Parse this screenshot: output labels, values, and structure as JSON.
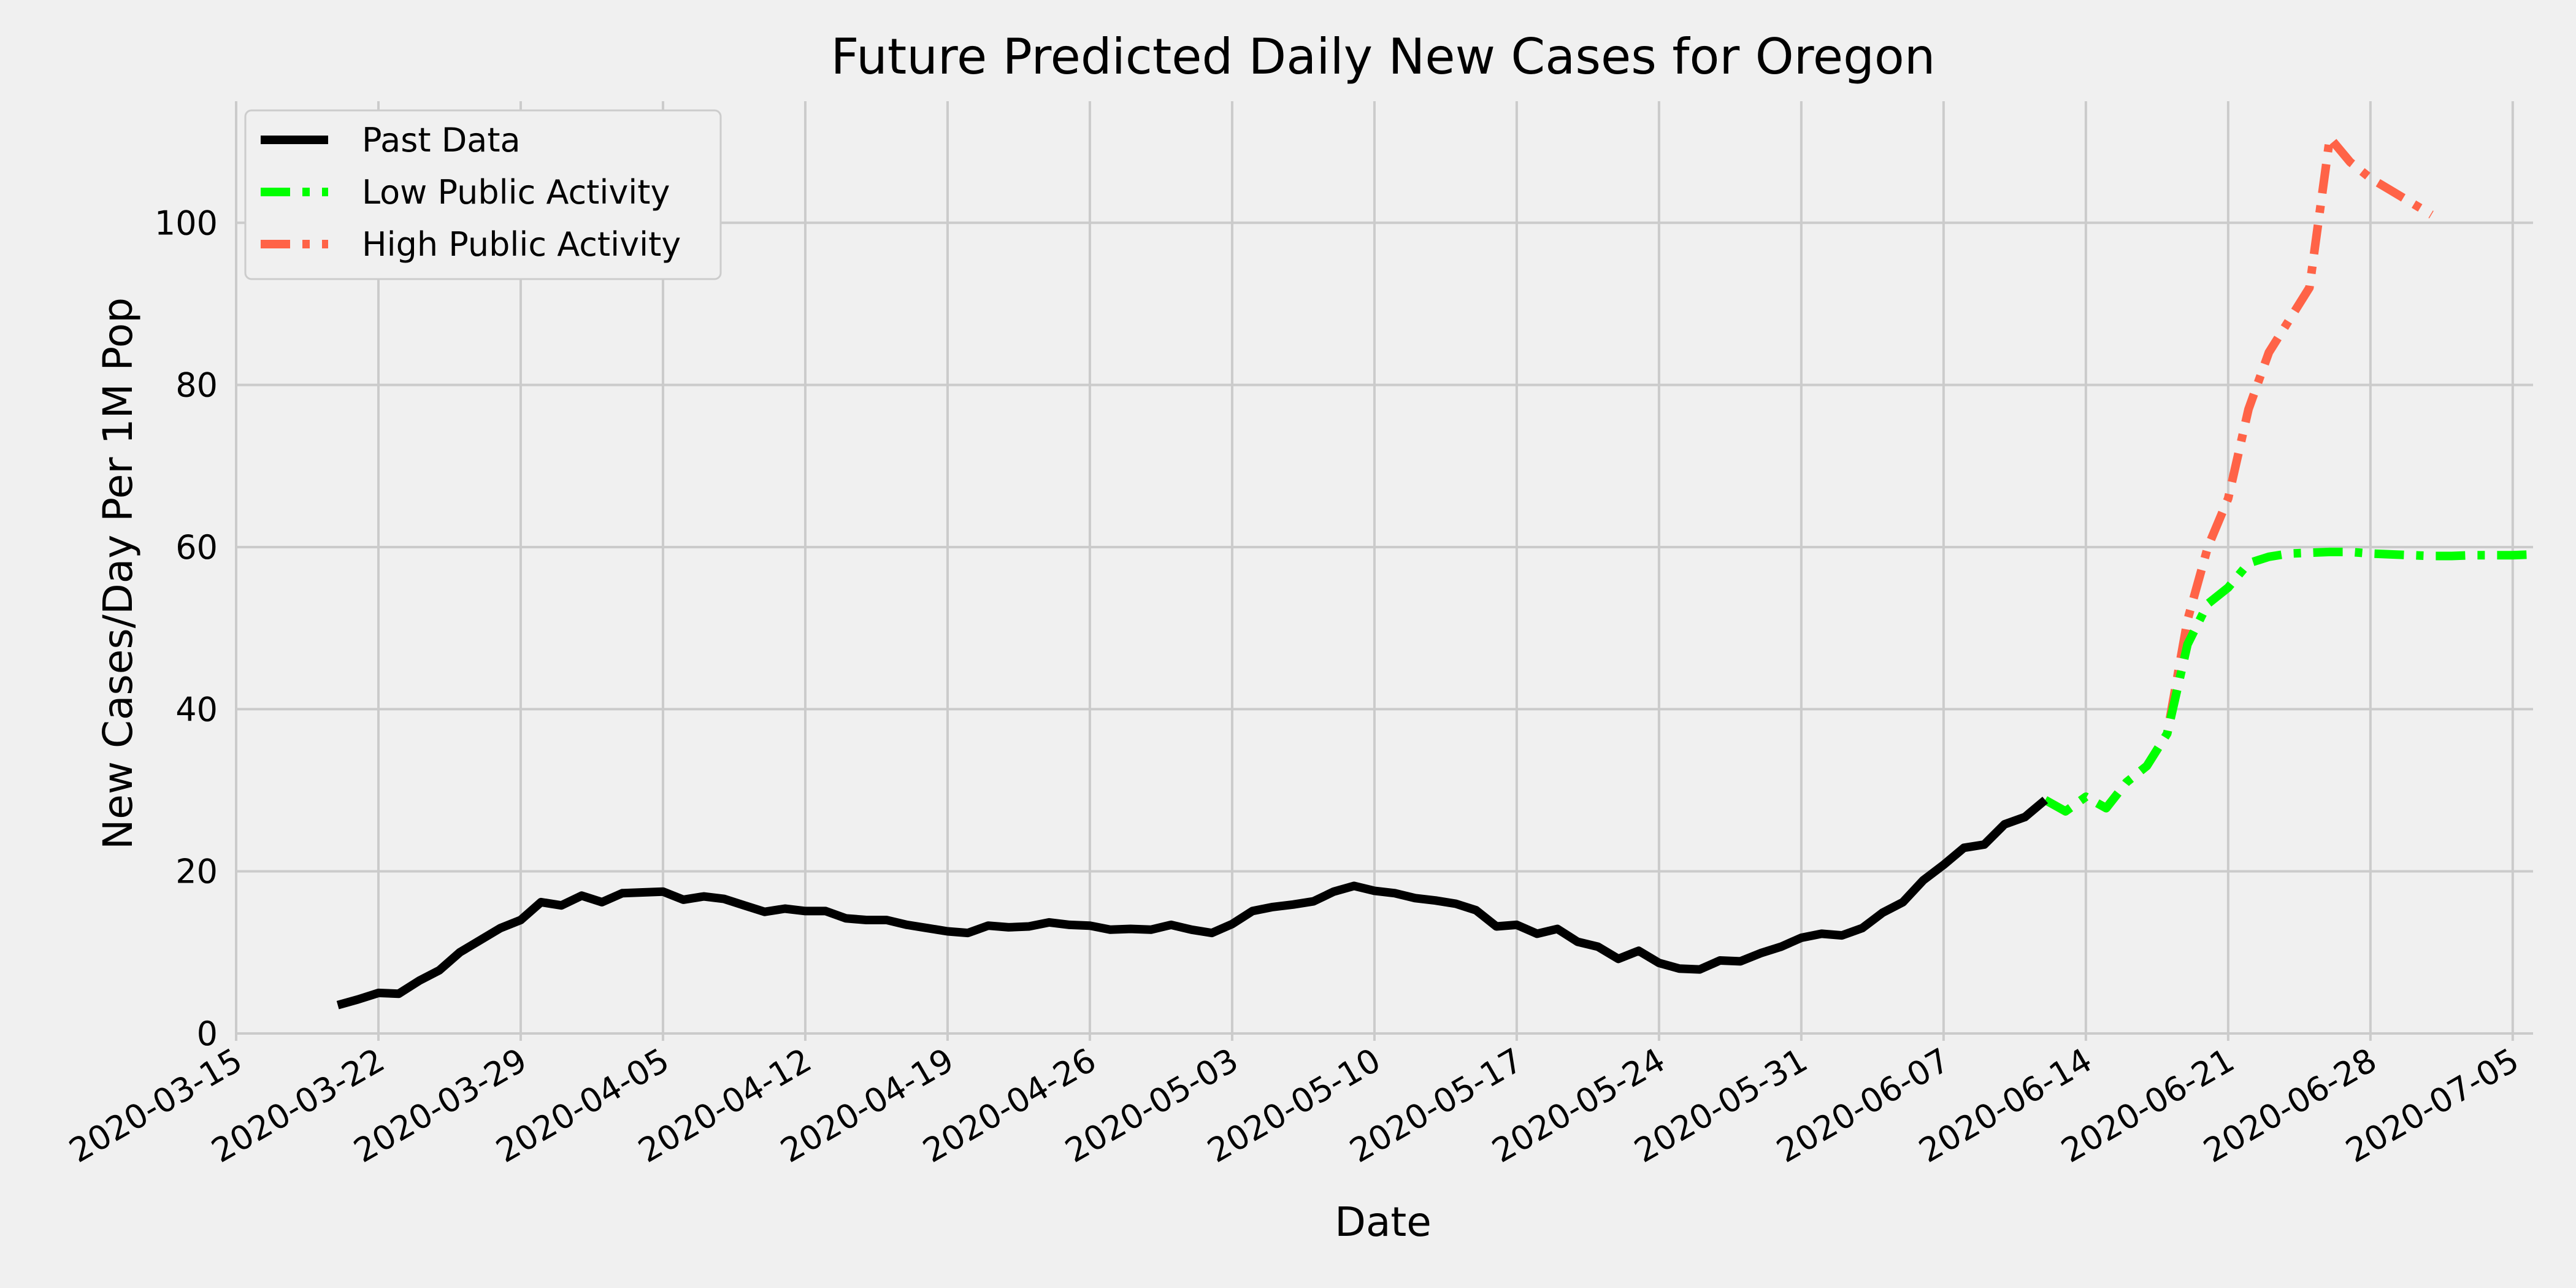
{
  "chart_data": {
    "type": "line",
    "title": "Future Predicted Daily New Cases for Oregon",
    "xlabel": "Date",
    "ylabel": "New Cases/Day Per 1M Pop",
    "xlim": [
      "2020-03-15",
      "2020-07-06"
    ],
    "ylim": [
      0,
      115
    ],
    "grid": true,
    "legend_position": "top-left",
    "x_ticks": [
      "2020-03-15",
      "2020-03-22",
      "2020-03-29",
      "2020-04-05",
      "2020-04-12",
      "2020-04-19",
      "2020-04-26",
      "2020-05-03",
      "2020-05-10",
      "2020-05-17",
      "2020-05-24",
      "2020-05-31",
      "2020-06-07",
      "2020-06-14",
      "2020-06-21",
      "2020-06-28",
      "2020-07-05"
    ],
    "y_ticks": [
      0,
      20,
      40,
      60,
      80,
      100
    ],
    "series": [
      {
        "name": "Past Data",
        "color": "#000000",
        "style": "solid",
        "start_date": "2020-03-20",
        "values": [
          3.5,
          4.2,
          5.0,
          4.9,
          6.5,
          7.8,
          10.0,
          11.5,
          13.0,
          14.0,
          16.2,
          15.8,
          17.0,
          16.2,
          17.3,
          17.4,
          17.5,
          16.5,
          16.9,
          16.6,
          15.8,
          15.0,
          15.4,
          15.1,
          15.1,
          14.2,
          14.0,
          14.0,
          13.4,
          13.0,
          12.6,
          12.4,
          13.3,
          13.1,
          13.2,
          13.7,
          13.4,
          13.3,
          12.8,
          12.9,
          12.8,
          13.4,
          12.8,
          12.4,
          13.5,
          15.1,
          15.6,
          15.9,
          16.3,
          17.5,
          18.2,
          17.6,
          17.3,
          16.7,
          16.4,
          16.0,
          15.2,
          13.2,
          13.4,
          12.3,
          12.9,
          11.3,
          10.7,
          9.2,
          10.2,
          8.7,
          8.0,
          7.9,
          9.0,
          8.9,
          9.9,
          10.7,
          11.8,
          12.3,
          12.1,
          13.0,
          14.9,
          16.2,
          18.9,
          20.8,
          22.9,
          23.3,
          25.8,
          26.7,
          28.8
        ]
      },
      {
        "name": "Low Public Activity",
        "color": "#00ff00",
        "style": "dashdot",
        "start_date": "2020-06-12",
        "values": [
          28.8,
          27.4,
          29.2,
          27.8,
          31.0,
          33.0,
          37.0,
          48.0,
          53.0,
          55.0,
          58.0,
          58.8,
          59.2,
          59.3,
          59.4,
          59.4,
          59.2,
          59.1,
          59.0,
          58.9,
          58.9,
          59.0,
          59.0,
          59.0,
          59.1
        ]
      },
      {
        "name": "High Public Activity",
        "color": "#ff6347",
        "style": "dashdot",
        "start_date": "2020-06-12",
        "values": [
          28.8,
          27.4,
          29.2,
          27.8,
          31.0,
          33.0,
          37.0,
          51.0,
          60.0,
          66.0,
          77.0,
          84.0,
          88.0,
          92.0,
          110.5,
          107.5,
          105.5,
          104.0,
          102.5,
          101.0
        ]
      }
    ]
  }
}
